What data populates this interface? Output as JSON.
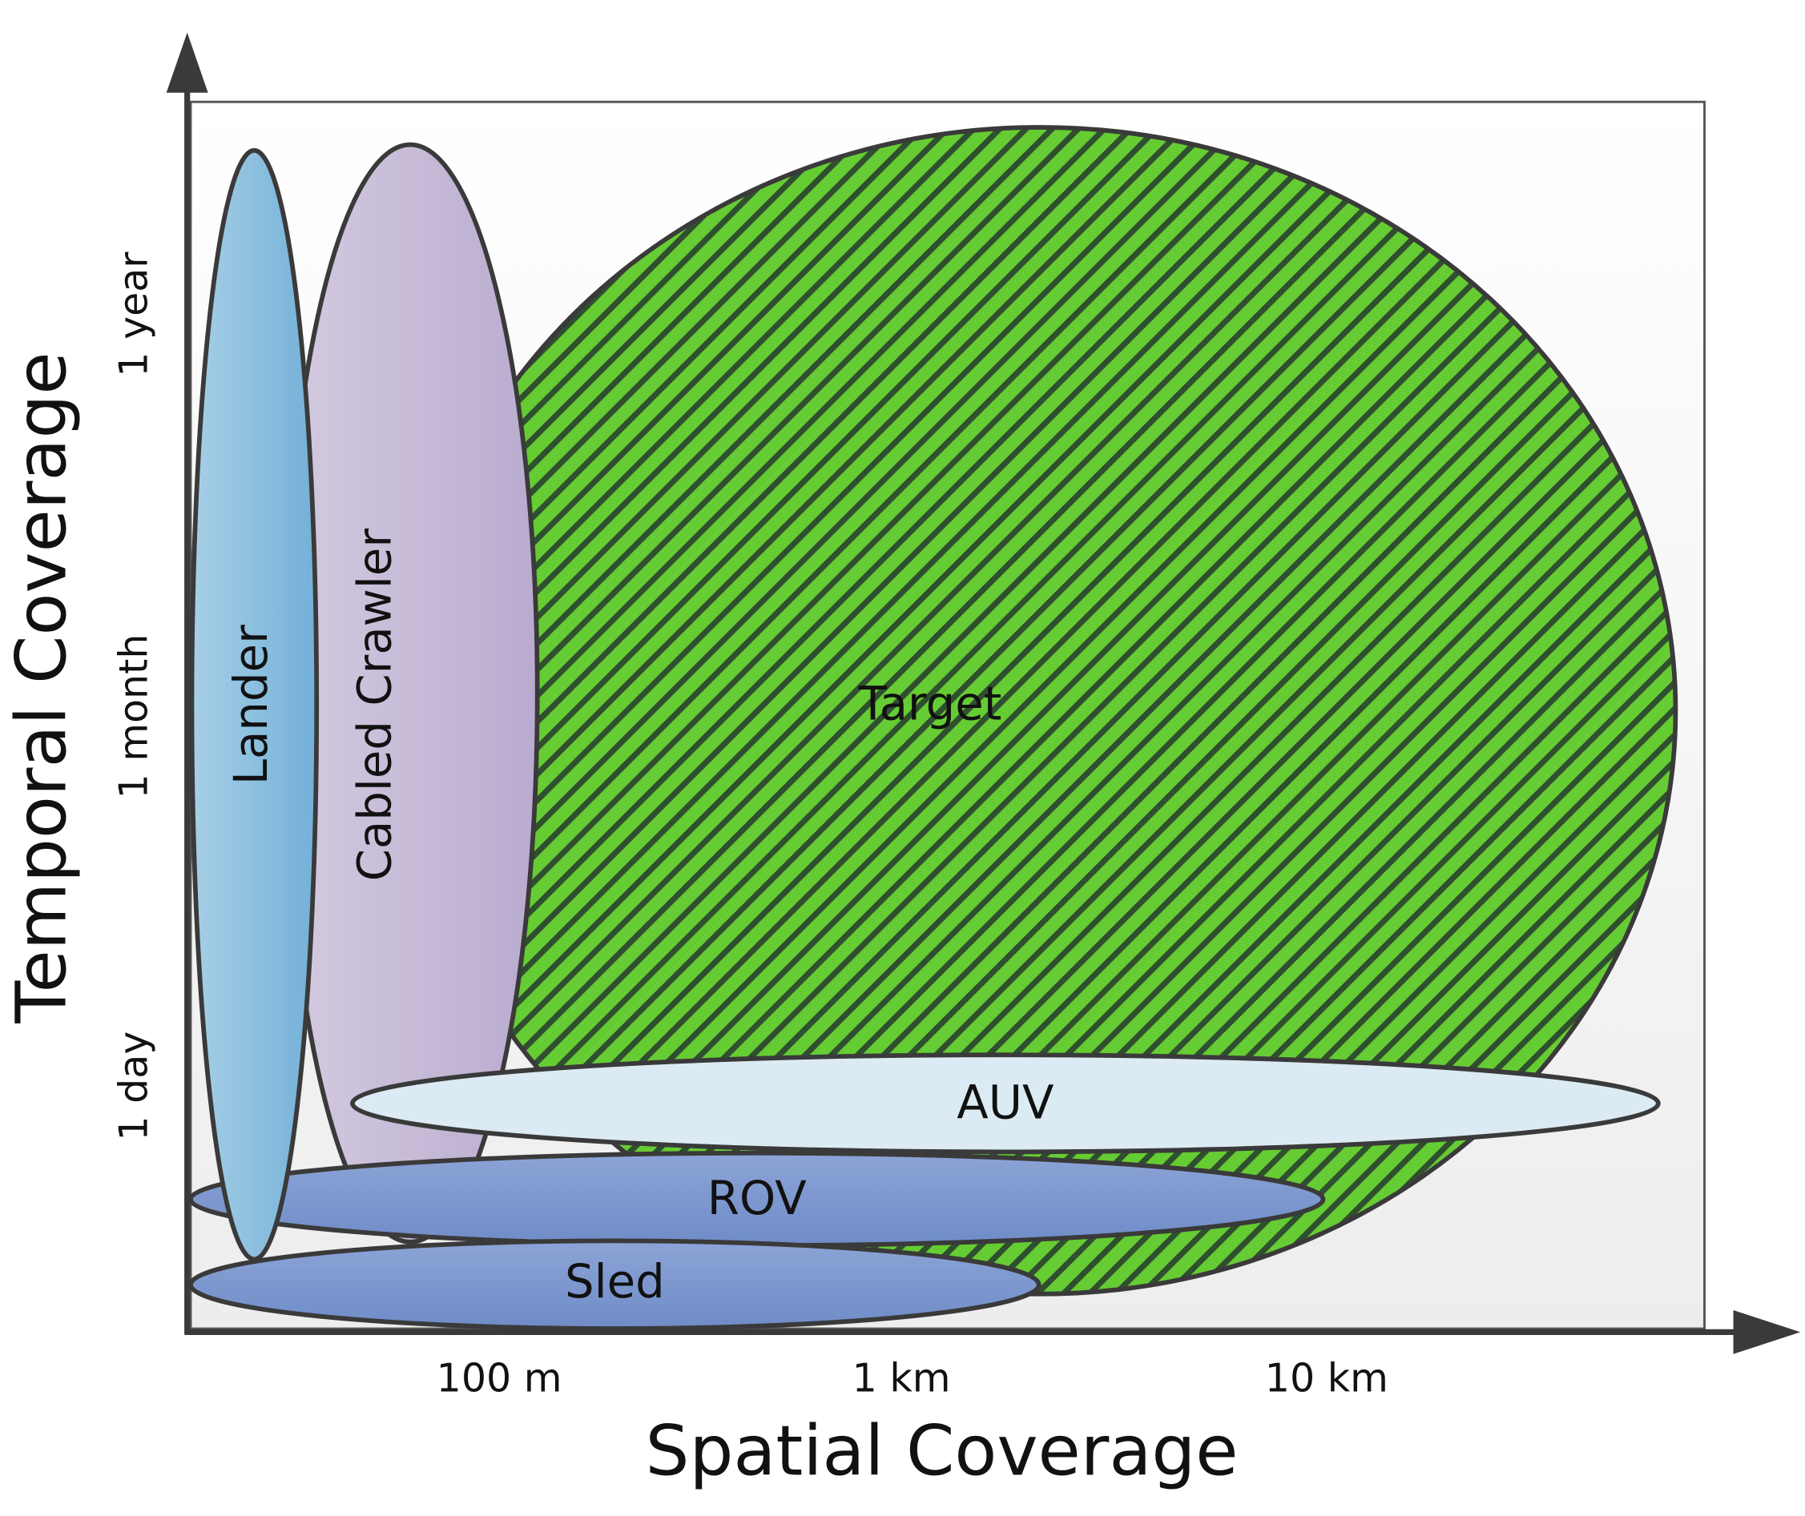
{
  "axes": {
    "x_label": "Spatial Coverage",
    "y_label": "Temporal Coverage",
    "x_ticks": [
      "100 m",
      "1 km",
      "10 km"
    ],
    "y_ticks": [
      "1 year",
      "1 month",
      "1 day"
    ]
  },
  "regions": [
    {
      "label": "Target"
    },
    {
      "label": "Cabled Crawler"
    },
    {
      "label": "AUV"
    },
    {
      "label": "ROV"
    },
    {
      "label": "Lander"
    },
    {
      "label": "Sled"
    }
  ]
}
